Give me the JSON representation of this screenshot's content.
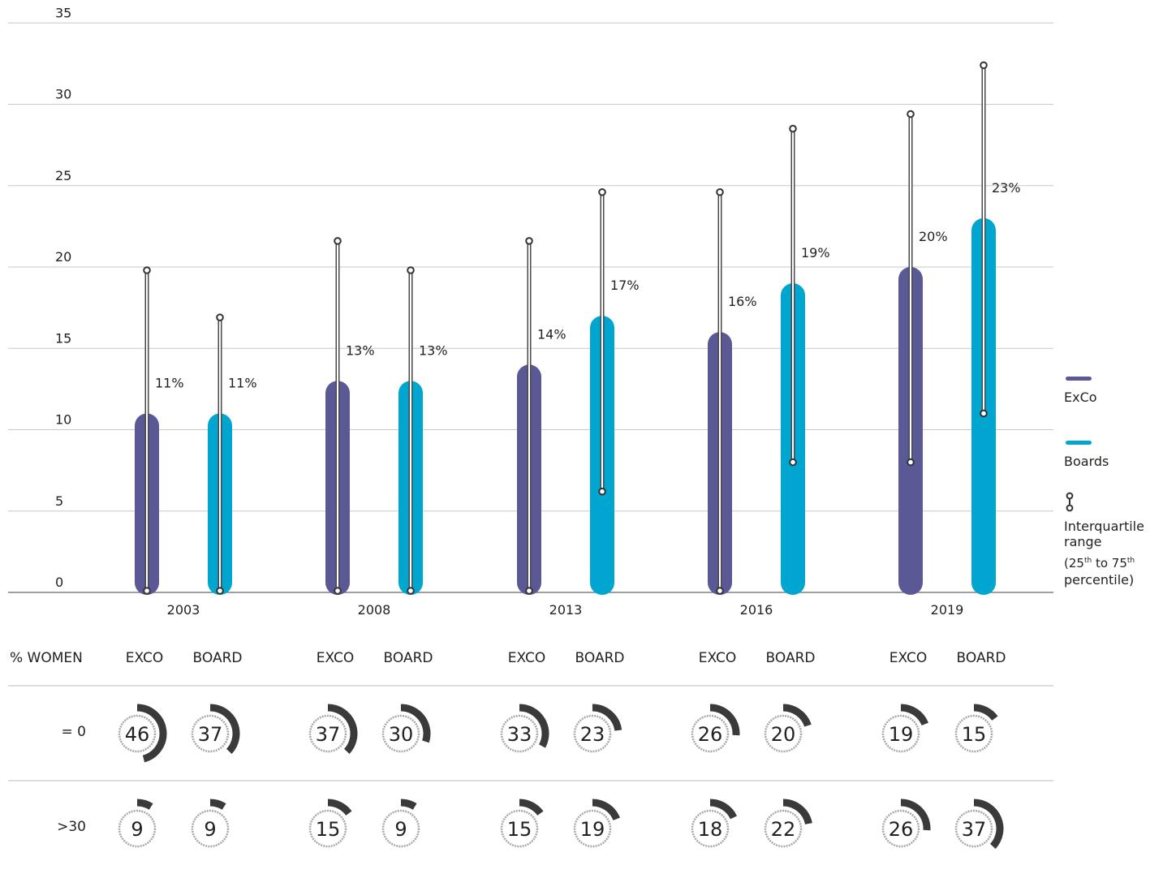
{
  "chart_data": [
    {
      "type": "bar",
      "categories": [
        "2003",
        "2008",
        "2013",
        "2016",
        "2019"
      ],
      "ylim": [
        0,
        35
      ],
      "yticks": [
        0,
        5,
        10,
        15,
        20,
        25,
        30,
        35
      ],
      "grid": true,
      "legend_position": "right",
      "series": [
        {
          "name": "ExCo",
          "color": "#5b5896",
          "values": [
            11,
            13,
            14,
            16,
            20
          ],
          "labels": [
            "11%",
            "13%",
            "14%",
            "16%",
            "20%"
          ],
          "iqr": [
            [
              0,
              19.8
            ],
            [
              0,
              21.6
            ],
            [
              0,
              21.6
            ],
            [
              0,
              24.6
            ],
            [
              7.9,
              29.4
            ]
          ]
        },
        {
          "name": "Boards",
          "color": "#00a6cf",
          "values": [
            11,
            13,
            17,
            19,
            23
          ],
          "labels": [
            "11%",
            "13%",
            "17%",
            "19%",
            "23%"
          ],
          "iqr": [
            [
              0,
              16.9
            ],
            [
              0,
              19.8
            ],
            [
              6.1,
              24.6
            ],
            [
              7.9,
              28.5
            ],
            [
              10.9,
              32.4
            ]
          ]
        }
      ],
      "legend": {
        "exco": "ExCo",
        "boards": "Boards",
        "iqr_line1": "Interquartile",
        "iqr_line2": "range",
        "iqr_line3_a": "(25",
        "iqr_line3_sup1": "th",
        "iqr_line3_b": " to 75",
        "iqr_line3_sup2": "th",
        "iqr_line4": "percentile)"
      }
    },
    {
      "type": "table",
      "header_label": "% WOMEN",
      "column_labels": [
        "EXCO",
        "BOARD"
      ],
      "rows": [
        {
          "label": "= 0",
          "values": [
            [
              46,
              37
            ],
            [
              37,
              30
            ],
            [
              33,
              23
            ],
            [
              26,
              20
            ],
            [
              19,
              15
            ]
          ]
        },
        {
          "label": ">30",
          "values": [
            [
              9,
              9
            ],
            [
              15,
              9
            ],
            [
              15,
              19
            ],
            [
              18,
              22
            ],
            [
              26,
              37
            ]
          ]
        }
      ]
    }
  ]
}
